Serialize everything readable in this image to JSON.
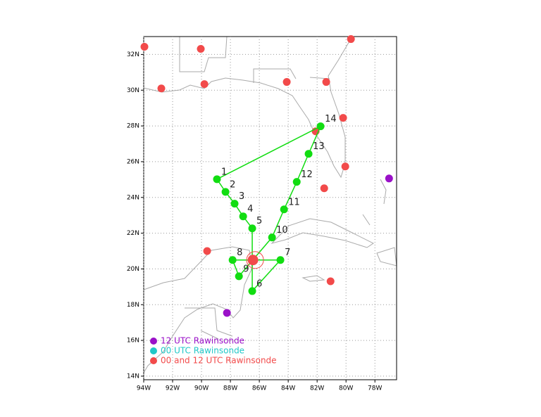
{
  "chart_data": {
    "type": "map",
    "xlim": [
      -94,
      -76.5
    ],
    "ylim": [
      13.8,
      33
    ],
    "xticks": [
      {
        "value": -94,
        "label": "94W"
      },
      {
        "value": -92,
        "label": "92W"
      },
      {
        "value": -90,
        "label": "90W"
      },
      {
        "value": -88,
        "label": "88W"
      },
      {
        "value": -86,
        "label": "86W"
      },
      {
        "value": -84,
        "label": "84W"
      },
      {
        "value": -82,
        "label": "82W"
      },
      {
        "value": -80,
        "label": "80W"
      },
      {
        "value": -78,
        "label": "78W"
      }
    ],
    "yticks": [
      {
        "value": 14,
        "label": "14N"
      },
      {
        "value": 16,
        "label": "16N"
      },
      {
        "value": 18,
        "label": "18N"
      },
      {
        "value": 20,
        "label": "20N"
      },
      {
        "value": 22,
        "label": "22N"
      },
      {
        "value": 24,
        "label": "24N"
      },
      {
        "value": 26,
        "label": "26N"
      },
      {
        "value": 28,
        "label": "28N"
      },
      {
        "value": 30,
        "label": "30N"
      },
      {
        "value": 32,
        "label": "32N"
      }
    ],
    "grid": true,
    "track": {
      "color": "#11dd11",
      "labels": [
        "1",
        "2",
        "3",
        "4",
        "5",
        "6",
        "7",
        "8",
        "9",
        "10",
        "11",
        "12",
        "13",
        "14"
      ],
      "x": [
        -88.93,
        -88.34,
        -87.71,
        -87.12,
        -86.49,
        -86.49,
        -84.54,
        -87.85,
        -87.41,
        -85.12,
        -84.29,
        -83.41,
        -82.59,
        -81.76
      ],
      "y": [
        25.02,
        24.31,
        23.65,
        22.94,
        22.27,
        18.76,
        20.5,
        20.5,
        19.59,
        21.76,
        23.33,
        24.87,
        26.44,
        27.98
      ]
    },
    "center": {
      "color": "#f24a4a",
      "x": -86.44,
      "y": 20.5
    },
    "series": [
      {
        "name": "12 UTC Rawinsonde",
        "color": "#9a11c8",
        "x": [
          -77.02,
          -88.24
        ],
        "y": [
          25.06,
          17.54
        ]
      },
      {
        "name": "00 UTC Rawinsonde",
        "color": "#22c8c8",
        "x": [],
        "y": []
      },
      {
        "name": "00 and 12 UTC Rawinsonde",
        "color": "#f24a4a",
        "x": [
          -93.95,
          -92.78,
          -90.05,
          -89.8,
          -84.1,
          -81.37,
          -79.66,
          -80.2,
          -82.1,
          -80.05,
          -81.51,
          -89.61,
          -81.07
        ],
        "y": [
          32.43,
          30.1,
          32.31,
          30.34,
          30.46,
          30.46,
          32.86,
          28.45,
          27.7,
          25.73,
          24.51,
          21.0,
          19.31
        ]
      }
    ]
  }
}
